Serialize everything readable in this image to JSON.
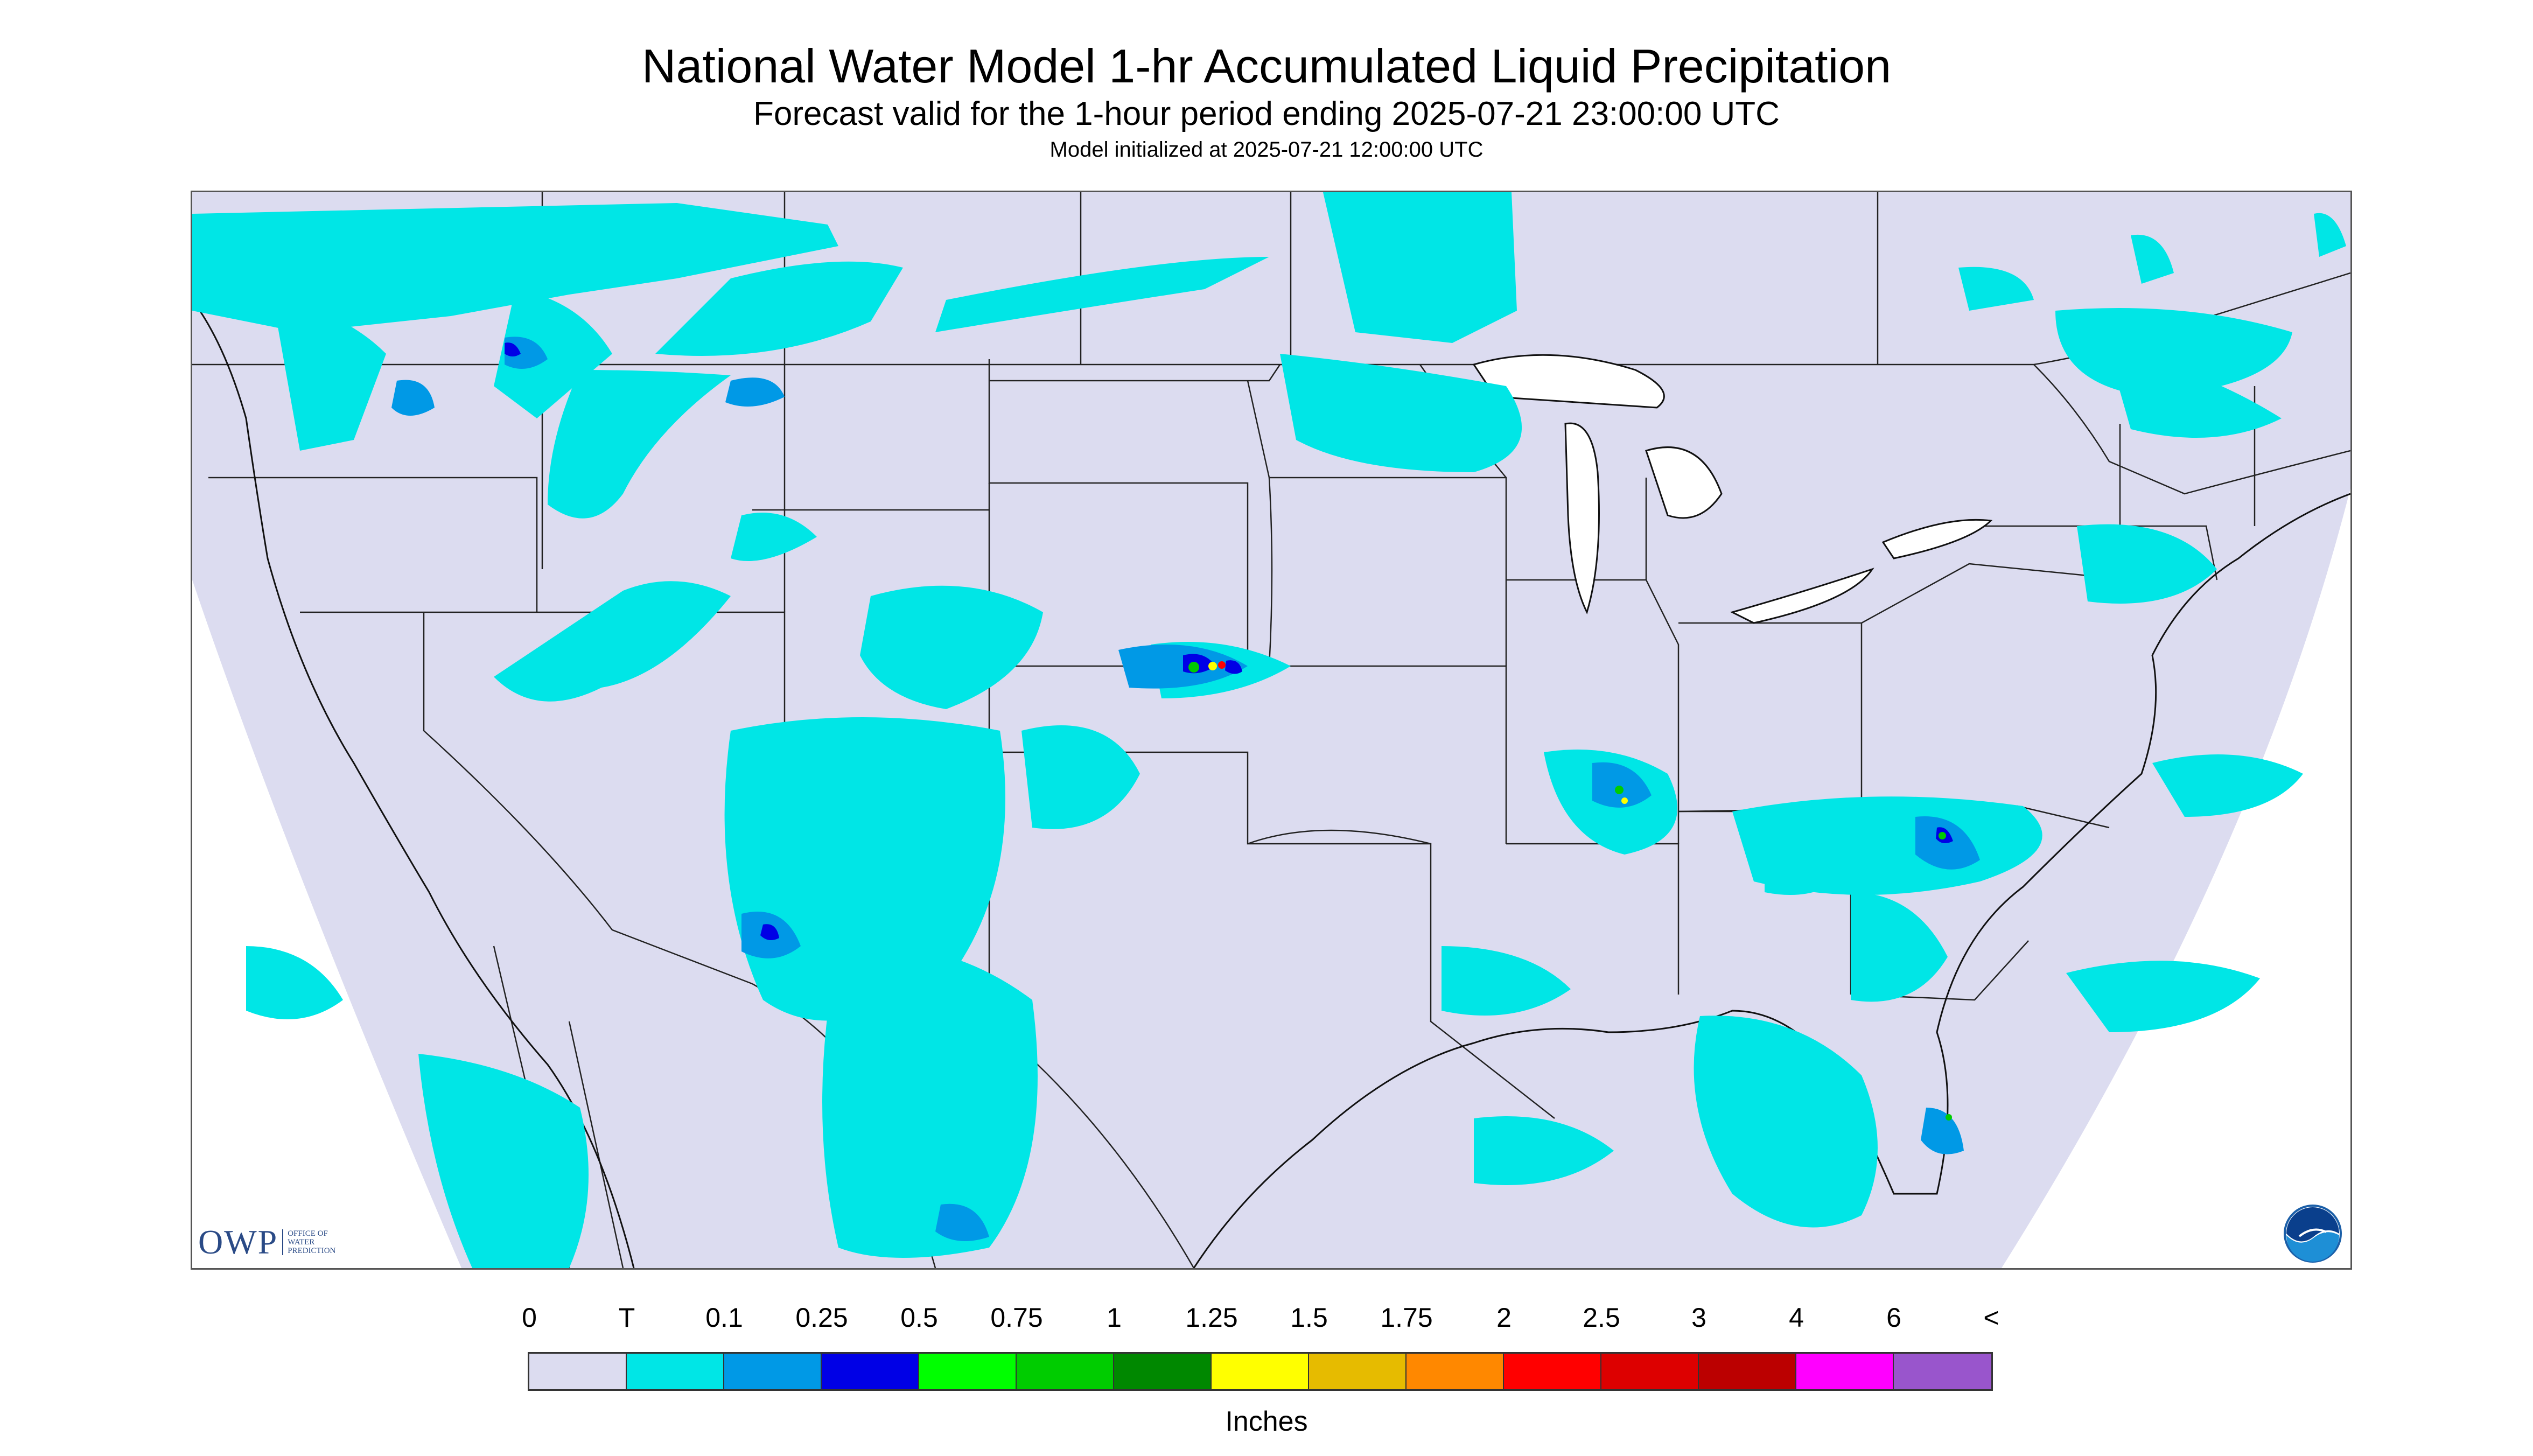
{
  "title": "National Water Model 1-hr Accumulated Liquid Precipitation",
  "subtitle": "Forecast valid for the 1-hour period ending 2025-07-21 23:00:00 UTC",
  "init_line": "Model initialized at 2025-07-21 12:00:00 UTC",
  "legend": {
    "units": "Inches",
    "labels": [
      "0",
      "T",
      "0.1",
      "0.25",
      "0.5",
      "0.75",
      "1",
      "1.25",
      "1.5",
      "1.75",
      "2",
      "2.5",
      "3",
      "4",
      "6",
      "<"
    ],
    "colors": [
      "#dcdcf0",
      "#00e6e6",
      "#0099e6",
      "#0000e6",
      "#00ff00",
      "#00cc00",
      "#008800",
      "#ffff00",
      "#e6bb00",
      "#ff8800",
      "#ff0000",
      "#dd0000",
      "#bb0000",
      "#ff00ff",
      "#9955cc"
    ]
  },
  "map": {
    "background_color": "#dcdcf0",
    "precip_light_color": "#00e6e6",
    "precip_moderate_color": "#0099e6",
    "precip_heavy_color": "#0000e6"
  },
  "logos": {
    "owp_mark": "OWP",
    "owp_text": [
      "OFFICE OF",
      "WATER",
      "PREDICTION"
    ],
    "noaa_icon": "noaa-logo-icon"
  }
}
